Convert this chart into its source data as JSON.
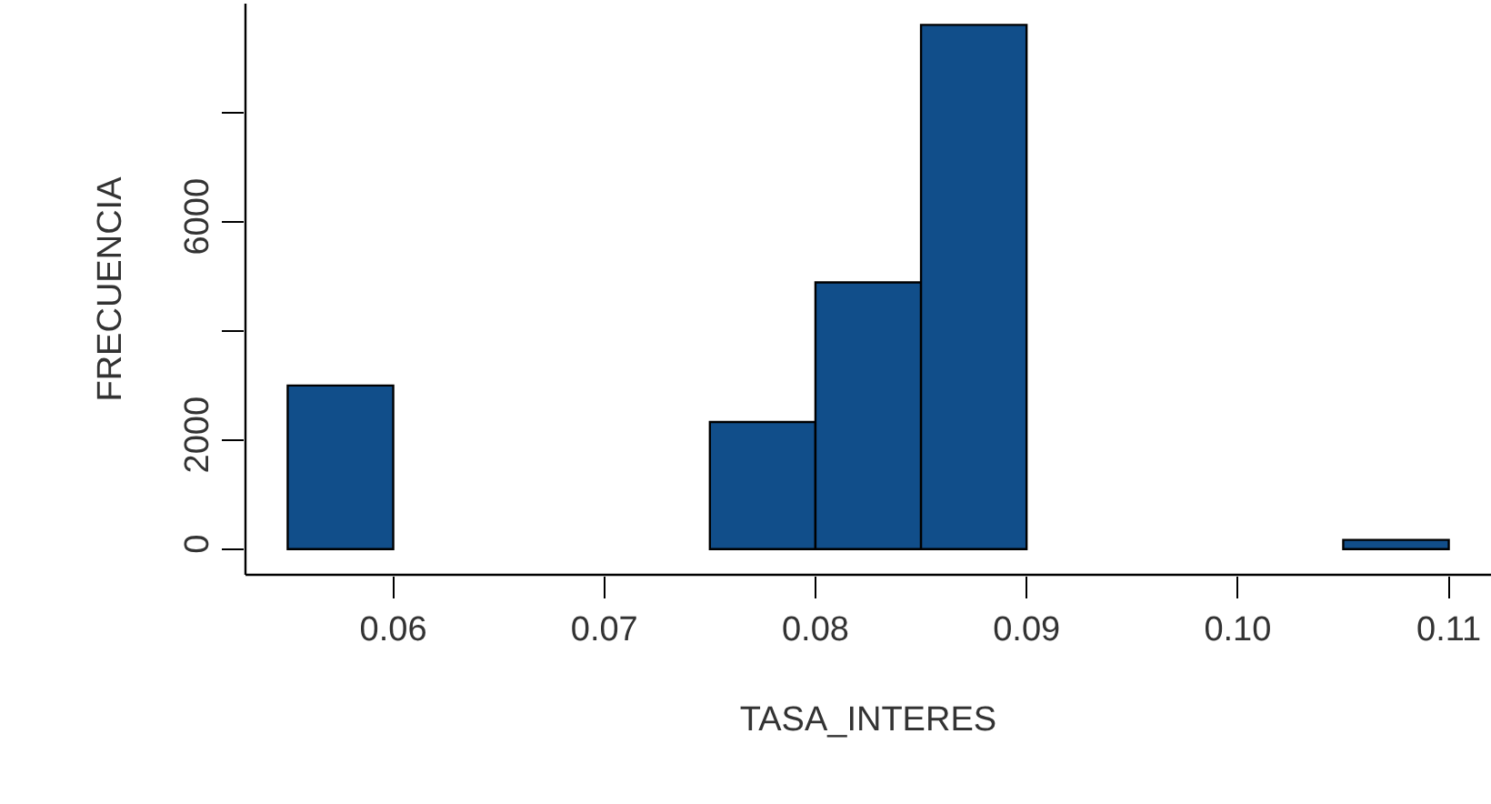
{
  "chart_data": {
    "type": "histogram",
    "xlabel": "TASA_INTERES",
    "ylabel": "FRECUENCIA",
    "bins": [
      0.055,
      0.06,
      0.065,
      0.07,
      0.075,
      0.08,
      0.085,
      0.09,
      0.095,
      0.1,
      0.105,
      0.11
    ],
    "values": [
      3000,
      0,
      0,
      0,
      2330,
      4890,
      9610,
      0,
      0,
      0,
      170
    ],
    "color": "#114e8a",
    "xlim": [
      0.053,
      0.112
    ],
    "xticks": [
      {
        "value": 0.06,
        "label": "0.06"
      },
      {
        "value": 0.07,
        "label": "0.07"
      },
      {
        "value": 0.08,
        "label": "0.08"
      },
      {
        "value": 0.09,
        "label": "0.09"
      },
      {
        "value": 0.1,
        "label": "0.10"
      },
      {
        "value": 0.11,
        "label": "0.11"
      }
    ],
    "ylim": [
      -470,
      10000
    ],
    "yticks": [
      0,
      2000,
      {
        "value": 4000,
        "label": null
      },
      6000,
      {
        "value": 8000,
        "label": null
      }
    ]
  }
}
